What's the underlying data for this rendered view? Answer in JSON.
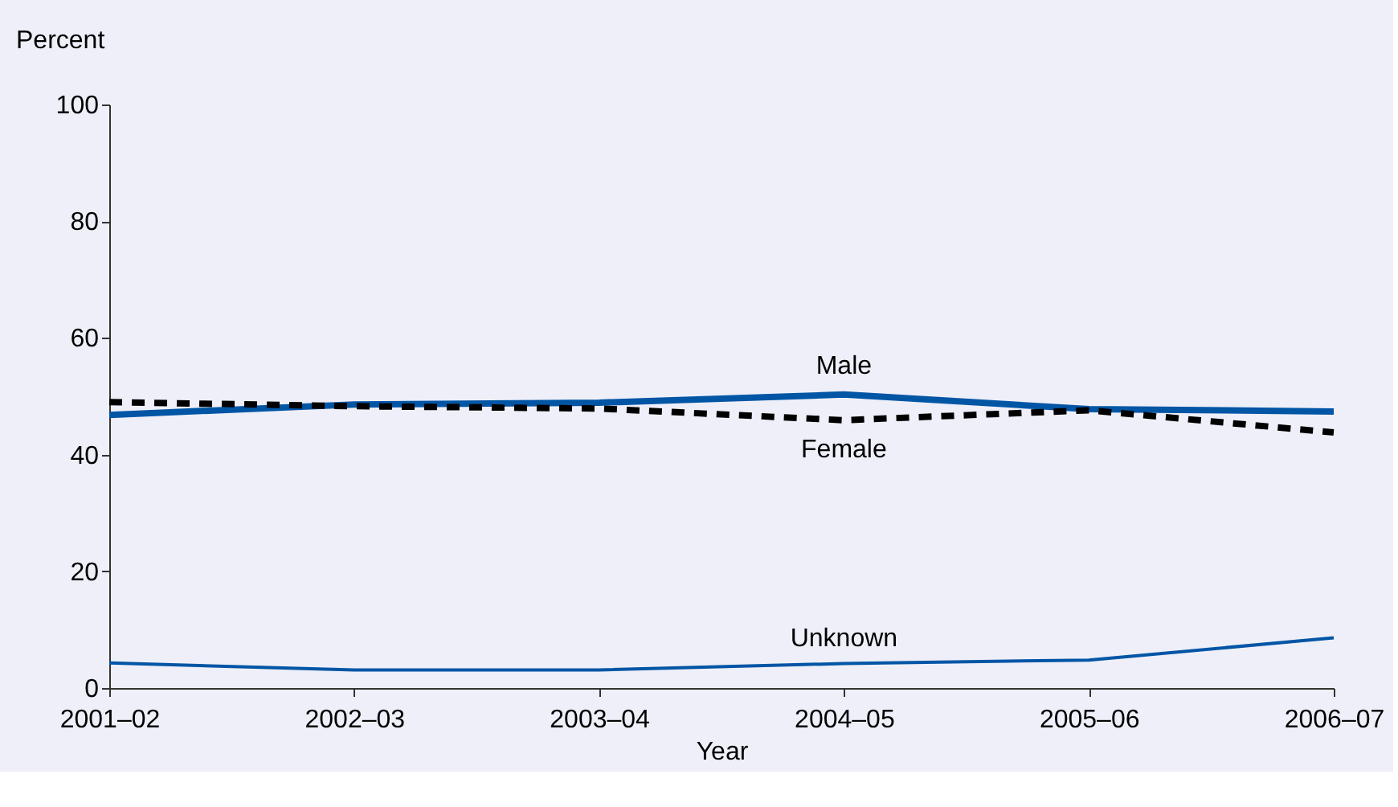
{
  "chart_data": {
    "type": "line",
    "xlabel": "Year",
    "ylabel": "Percent",
    "categories": [
      "2001–02",
      "2002–03",
      "2003–04",
      "2004–05",
      "2005–06",
      "2006–07"
    ],
    "series": [
      {
        "name": "Male",
        "color": "#0055a5",
        "line_style": "solid",
        "values": [
          46.8,
          48.6,
          48.9,
          50.3,
          47.8,
          47.4
        ]
      },
      {
        "name": "Female",
        "color": "#000000",
        "line_style": "dashed",
        "values": [
          49.0,
          48.3,
          47.9,
          45.9,
          47.6,
          43.8
        ]
      },
      {
        "name": "Unknown",
        "color": "#0055a5",
        "line_style": "solid",
        "values": [
          4.3,
          3.1,
          3.1,
          4.2,
          4.8,
          8.6
        ]
      }
    ],
    "ylim": [
      0,
      100
    ],
    "yticks": [
      0,
      20,
      40,
      60,
      80,
      100
    ],
    "grid": false,
    "marker": "none"
  }
}
